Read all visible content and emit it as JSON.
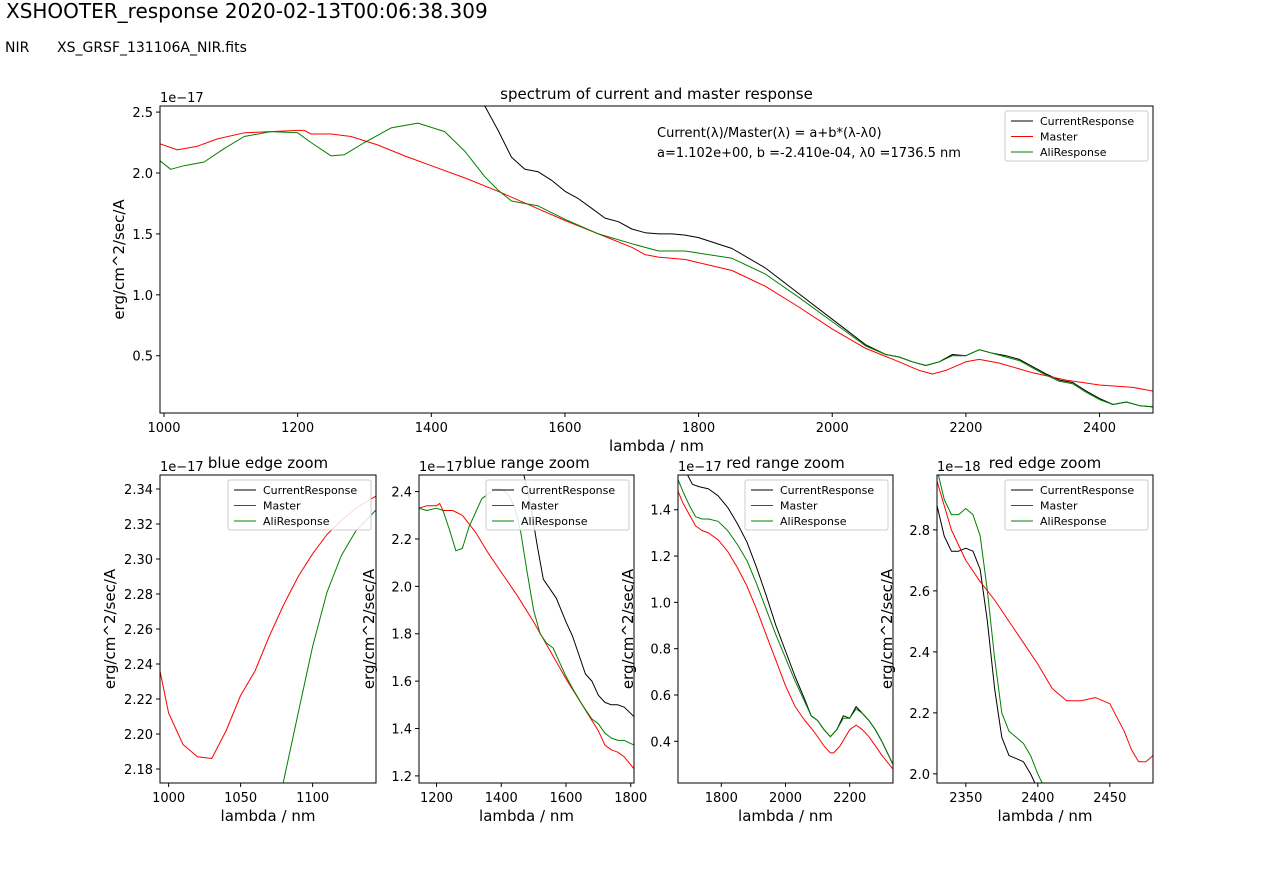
{
  "header": {
    "title": "XSHOOTER_response 2020-02-13T00:06:38.309",
    "arm": "NIR",
    "filename": "XS_GRSF_131106A_NIR.fits"
  },
  "colors": {
    "CurrentResponse": "#000000",
    "Master": "#ff0000",
    "AliResponse": "#008000"
  },
  "annotation": {
    "line1": "Current(λ)/Master(λ) = a+b*(λ-λ0)",
    "line2": " a=1.102e+00,  b =-2.410e-04, λ0 =1736.5 nm"
  },
  "chart_data": [
    {
      "type": "line",
      "title": "spectrum of current and master response",
      "xlabel": "lambda / nm",
      "ylabel": "erg/cm^2/sec/A",
      "offset_label": "1e−17",
      "xlim": [
        994,
        2480
      ],
      "ylim": [
        0.03,
        2.55
      ],
      "xticks": [
        1000,
        1200,
        1400,
        1600,
        1800,
        2000,
        2200,
        2400
      ],
      "yticks": [
        0.5,
        1.0,
        1.5,
        2.0,
        2.5
      ],
      "ytick_labels": [
        "0.5",
        "1.0",
        "1.5",
        "2.0",
        "2.5"
      ],
      "legend": "upper right",
      "series": [
        {
          "name": "CurrentResponse",
          "x": [
            1480,
            1500,
            1520,
            1540,
            1560,
            1580,
            1600,
            1620,
            1640,
            1660,
            1680,
            1700,
            1720,
            1740,
            1760,
            1780,
            1800,
            1850,
            1900,
            1950,
            2000,
            2050,
            2080,
            2100,
            2120,
            2140,
            2160,
            2180,
            2200,
            2220,
            2240,
            2260,
            2280,
            2300,
            2320,
            2340,
            2360,
            2380,
            2400,
            2420,
            2440,
            2460,
            2480
          ],
          "y": [
            2.55,
            2.35,
            2.13,
            2.03,
            2.01,
            1.94,
            1.85,
            1.79,
            1.71,
            1.63,
            1.6,
            1.54,
            1.51,
            1.5,
            1.5,
            1.49,
            1.47,
            1.38,
            1.22,
            1.01,
            0.8,
            0.59,
            0.51,
            0.49,
            0.45,
            0.42,
            0.45,
            0.51,
            0.5,
            0.55,
            0.52,
            0.5,
            0.47,
            0.41,
            0.35,
            0.3,
            0.28,
            0.21,
            0.15,
            0.1,
            0.12,
            0.09,
            0.08
          ]
        },
        {
          "name": "Master",
          "x": [
            994,
            1020,
            1050,
            1080,
            1120,
            1160,
            1200,
            1210,
            1220,
            1250,
            1280,
            1320,
            1360,
            1400,
            1450,
            1500,
            1550,
            1600,
            1650,
            1700,
            1720,
            1740,
            1780,
            1850,
            1900,
            1950,
            2000,
            2050,
            2100,
            2130,
            2150,
            2170,
            2200,
            2220,
            2250,
            2300,
            2350,
            2400,
            2450,
            2480
          ],
          "y": [
            2.24,
            2.19,
            2.22,
            2.28,
            2.33,
            2.34,
            2.35,
            2.35,
            2.32,
            2.32,
            2.3,
            2.23,
            2.14,
            2.06,
            1.96,
            1.85,
            1.73,
            1.61,
            1.5,
            1.39,
            1.33,
            1.31,
            1.29,
            1.2,
            1.07,
            0.9,
            0.72,
            0.56,
            0.45,
            0.38,
            0.35,
            0.38,
            0.45,
            0.47,
            0.44,
            0.36,
            0.3,
            0.26,
            0.24,
            0.21
          ]
        },
        {
          "name": "AliResponse",
          "x": [
            994,
            1010,
            1030,
            1060,
            1090,
            1120,
            1160,
            1200,
            1220,
            1250,
            1270,
            1300,
            1340,
            1380,
            1420,
            1450,
            1480,
            1500,
            1520,
            1540,
            1560,
            1600,
            1650,
            1700,
            1740,
            1780,
            1850,
            1900,
            1950,
            2000,
            2050,
            2080,
            2100,
            2120,
            2140,
            2160,
            2180,
            2200,
            2220,
            2240,
            2260,
            2280,
            2300,
            2320,
            2340,
            2360,
            2380,
            2400,
            2420,
            2440,
            2460,
            2480
          ],
          "y": [
            2.1,
            2.03,
            2.06,
            2.09,
            2.2,
            2.3,
            2.34,
            2.33,
            2.25,
            2.14,
            2.15,
            2.25,
            2.37,
            2.41,
            2.34,
            2.18,
            1.97,
            1.86,
            1.77,
            1.75,
            1.73,
            1.62,
            1.5,
            1.42,
            1.36,
            1.36,
            1.3,
            1.17,
            0.98,
            0.78,
            0.58,
            0.51,
            0.49,
            0.45,
            0.42,
            0.45,
            0.5,
            0.5,
            0.55,
            0.52,
            0.49,
            0.46,
            0.4,
            0.34,
            0.29,
            0.27,
            0.2,
            0.14,
            0.1,
            0.12,
            0.09,
            0.08
          ]
        }
      ]
    },
    {
      "type": "line",
      "title": "blue edge zoom",
      "xlabel": "lambda / nm",
      "ylabel": "erg/cm^2/sec/A",
      "offset_label": "1e−17",
      "xlim": [
        994,
        1144
      ],
      "ylim": [
        2.172,
        2.348
      ],
      "xticks": [
        1000,
        1050,
        1100
      ],
      "yticks": [
        2.18,
        2.2,
        2.22,
        2.24,
        2.26,
        2.28,
        2.3,
        2.32,
        2.34
      ],
      "ytick_labels": [
        "2.18",
        "2.20",
        "2.22",
        "2.24",
        "2.26",
        "2.28",
        "2.30",
        "2.32",
        "2.34"
      ],
      "legend": "upper right",
      "series": [
        {
          "name": "CurrentResponse",
          "x": [],
          "y": []
        },
        {
          "name": "Master",
          "x": [
            994,
            1000,
            1010,
            1020,
            1030,
            1040,
            1050,
            1060,
            1070,
            1080,
            1090,
            1100,
            1110,
            1120,
            1130,
            1144
          ],
          "y": [
            2.236,
            2.212,
            2.194,
            2.187,
            2.186,
            2.202,
            2.222,
            2.236,
            2.256,
            2.274,
            2.29,
            2.303,
            2.314,
            2.322,
            2.329,
            2.336
          ]
        },
        {
          "name": "AliResponse",
          "x": [
            1079,
            1090,
            1100,
            1110,
            1120,
            1130,
            1144
          ],
          "y": [
            2.17,
            2.212,
            2.25,
            2.281,
            2.302,
            2.316,
            2.328
          ]
        }
      ]
    },
    {
      "type": "line",
      "title": "blue range zoom",
      "xlabel": "lambda / nm",
      "ylabel": "erg/cm^2/sec/A",
      "offset_label": "1e−17",
      "xlim": [
        1146,
        1810
      ],
      "ylim": [
        1.17,
        2.47
      ],
      "xticks": [
        1200,
        1400,
        1600,
        1800
      ],
      "yticks": [
        1.2,
        1.4,
        1.6,
        1.8,
        2.0,
        2.2,
        2.4
      ],
      "ytick_labels": [
        "1.2",
        "1.4",
        "1.6",
        "1.8",
        "2.0",
        "2.2",
        "2.4"
      ],
      "legend": "upper right",
      "series": [
        {
          "name": "CurrentResponse",
          "x": [
            1470,
            1490,
            1510,
            1530,
            1550,
            1570,
            1600,
            1620,
            1640,
            1660,
            1680,
            1700,
            1720,
            1740,
            1760,
            1780,
            1810
          ],
          "y": [
            2.47,
            2.35,
            2.18,
            2.03,
            1.99,
            1.95,
            1.85,
            1.79,
            1.71,
            1.63,
            1.6,
            1.54,
            1.51,
            1.5,
            1.5,
            1.49,
            1.45
          ]
        },
        {
          "name": "Master",
          "x": [
            1146,
            1170,
            1200,
            1210,
            1220,
            1250,
            1280,
            1320,
            1360,
            1400,
            1450,
            1500,
            1550,
            1600,
            1650,
            1700,
            1720,
            1740,
            1760,
            1780,
            1810
          ],
          "y": [
            2.33,
            2.34,
            2.34,
            2.35,
            2.32,
            2.32,
            2.3,
            2.23,
            2.14,
            2.06,
            1.96,
            1.85,
            1.73,
            1.61,
            1.5,
            1.39,
            1.33,
            1.31,
            1.3,
            1.28,
            1.23
          ]
        },
        {
          "name": "AliResponse",
          "x": [
            1146,
            1170,
            1200,
            1220,
            1240,
            1260,
            1280,
            1300,
            1340,
            1380,
            1400,
            1420,
            1440,
            1460,
            1480,
            1500,
            1520,
            1540,
            1560,
            1580,
            1600,
            1620,
            1650,
            1680,
            1700,
            1720,
            1740,
            1760,
            1780,
            1810
          ],
          "y": [
            2.33,
            2.32,
            2.33,
            2.32,
            2.24,
            2.15,
            2.16,
            2.25,
            2.37,
            2.41,
            2.41,
            2.39,
            2.34,
            2.23,
            2.06,
            1.9,
            1.8,
            1.76,
            1.74,
            1.68,
            1.62,
            1.57,
            1.5,
            1.44,
            1.42,
            1.38,
            1.36,
            1.35,
            1.35,
            1.33
          ]
        }
      ]
    },
    {
      "type": "line",
      "title": "red range zoom",
      "xlabel": "lambda / nm",
      "ylabel": "erg/cm^2/sec/A",
      "offset_label": "1e−17",
      "xlim": [
        1665,
        2335
      ],
      "ylim": [
        0.22,
        1.55
      ],
      "xticks": [
        1800,
        2000,
        2200
      ],
      "yticks": [
        0.4,
        0.6,
        0.8,
        1.0,
        1.2,
        1.4
      ],
      "ytick_labels": [
        "0.4",
        "0.6",
        "0.8",
        "1.0",
        "1.2",
        "1.4"
      ],
      "legend": "upper right",
      "series": [
        {
          "name": "CurrentResponse",
          "x": [
            1695,
            1710,
            1730,
            1760,
            1790,
            1820,
            1850,
            1880,
            1910,
            1940,
            1970,
            2000,
            2030,
            2060,
            2080,
            2100,
            2120,
            2140,
            2160,
            2180,
            2200,
            2220,
            2240,
            2260,
            2280,
            2300,
            2335
          ],
          "y": [
            1.55,
            1.51,
            1.5,
            1.49,
            1.46,
            1.41,
            1.34,
            1.26,
            1.15,
            1.03,
            0.9,
            0.79,
            0.68,
            0.58,
            0.51,
            0.49,
            0.45,
            0.42,
            0.45,
            0.51,
            0.5,
            0.55,
            0.52,
            0.49,
            0.45,
            0.4,
            0.3
          ]
        },
        {
          "name": "Master",
          "x": [
            1665,
            1680,
            1700,
            1720,
            1740,
            1760,
            1790,
            1820,
            1850,
            1880,
            1910,
            1940,
            1970,
            2000,
            2030,
            2060,
            2090,
            2120,
            2140,
            2150,
            2170,
            2200,
            2220,
            2240,
            2260,
            2280,
            2300,
            2335
          ],
          "y": [
            1.48,
            1.43,
            1.38,
            1.33,
            1.31,
            1.3,
            1.27,
            1.22,
            1.15,
            1.07,
            0.97,
            0.86,
            0.75,
            0.64,
            0.55,
            0.49,
            0.44,
            0.38,
            0.35,
            0.35,
            0.38,
            0.45,
            0.47,
            0.45,
            0.42,
            0.38,
            0.34,
            0.28
          ]
        },
        {
          "name": "AliResponse",
          "x": [
            1665,
            1680,
            1700,
            1720,
            1740,
            1760,
            1790,
            1820,
            1850,
            1880,
            1910,
            1940,
            1970,
            2000,
            2030,
            2060,
            2080,
            2100,
            2120,
            2140,
            2160,
            2180,
            2200,
            2220,
            2240,
            2260,
            2280,
            2300,
            2335
          ],
          "y": [
            1.53,
            1.48,
            1.42,
            1.37,
            1.36,
            1.36,
            1.35,
            1.31,
            1.25,
            1.18,
            1.08,
            0.97,
            0.86,
            0.76,
            0.66,
            0.57,
            0.51,
            0.49,
            0.45,
            0.42,
            0.45,
            0.5,
            0.5,
            0.54,
            0.52,
            0.49,
            0.45,
            0.4,
            0.3
          ]
        }
      ]
    },
    {
      "type": "line",
      "title": "red edge zoom",
      "xlabel": "lambda / nm",
      "ylabel": "erg/cm^2/sec/A",
      "offset_label": "1e−18",
      "xlim": [
        2330,
        2480
      ],
      "ylim": [
        1.97,
        2.98
      ],
      "xticks": [
        2350,
        2400,
        2450
      ],
      "yticks": [
        2.0,
        2.2,
        2.4,
        2.6,
        2.8
      ],
      "ytick_labels": [
        "2.0",
        "2.2",
        "2.4",
        "2.6",
        "2.8"
      ],
      "legend": "upper right",
      "series": [
        {
          "name": "CurrentResponse",
          "x": [
            2330,
            2335,
            2340,
            2345,
            2350,
            2355,
            2360,
            2365,
            2370,
            2375,
            2380,
            2385,
            2390,
            2395,
            2398
          ],
          "y": [
            2.88,
            2.78,
            2.73,
            2.73,
            2.74,
            2.73,
            2.67,
            2.5,
            2.28,
            2.12,
            2.06,
            2.05,
            2.04,
            2.0,
            1.97
          ]
        },
        {
          "name": "Master",
          "x": [
            2330,
            2340,
            2350,
            2360,
            2370,
            2380,
            2390,
            2400,
            2410,
            2420,
            2430,
            2440,
            2450,
            2460,
            2465,
            2470,
            2475,
            2480
          ],
          "y": [
            2.96,
            2.8,
            2.7,
            2.63,
            2.57,
            2.5,
            2.43,
            2.36,
            2.28,
            2.24,
            2.24,
            2.25,
            2.23,
            2.14,
            2.08,
            2.04,
            2.04,
            2.06
          ]
        },
        {
          "name": "AliResponse",
          "x": [
            2331,
            2335,
            2340,
            2345,
            2350,
            2355,
            2360,
            2365,
            2370,
            2375,
            2380,
            2385,
            2390,
            2395,
            2400,
            2403
          ],
          "y": [
            2.98,
            2.9,
            2.85,
            2.85,
            2.87,
            2.85,
            2.78,
            2.6,
            2.38,
            2.2,
            2.14,
            2.12,
            2.1,
            2.06,
            2.0,
            1.97
          ]
        }
      ]
    }
  ]
}
